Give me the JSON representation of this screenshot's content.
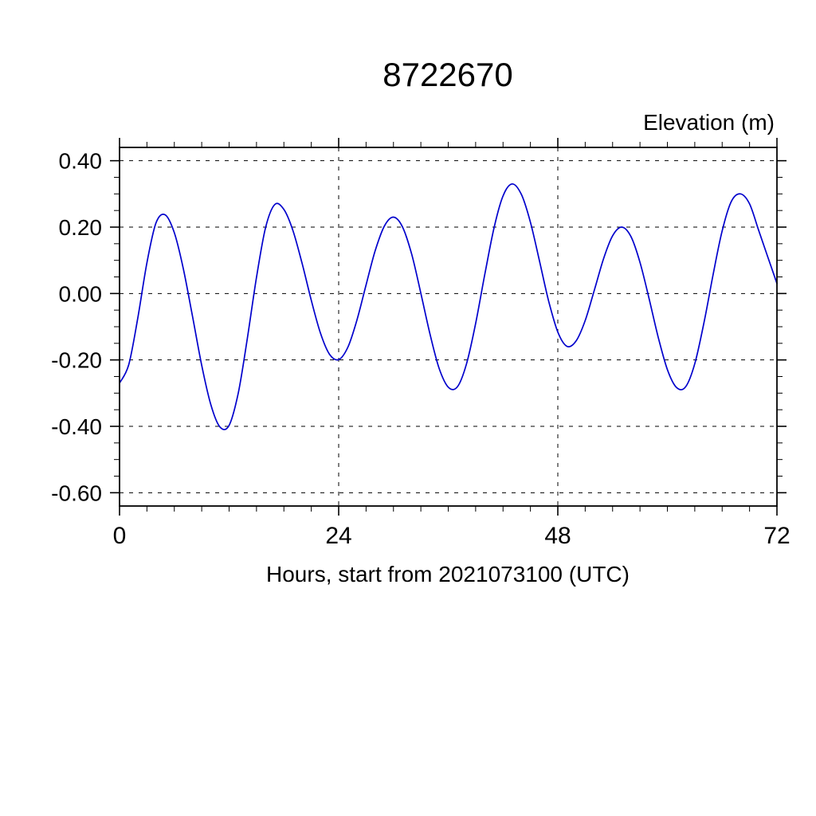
{
  "chart_data": {
    "type": "line",
    "title": "8722670",
    "ylabel": "Elevation (m)",
    "xlabel": "Hours, start from 2021073100 (UTC)",
    "xlim": [
      0,
      72
    ],
    "ylim": [
      -0.64,
      0.44
    ],
    "grid": true,
    "x_ticks": [
      0,
      24,
      48,
      72
    ],
    "x_tick_labels": [
      "0",
      "24",
      "48",
      "72"
    ],
    "x_grid": [
      24,
      48
    ],
    "x_minor_step": 3,
    "y_major": [
      0.4,
      0.2,
      0.0,
      -0.2,
      -0.4,
      -0.6
    ],
    "y_tick_labels": [
      "0.40",
      "0.20",
      "0.00",
      "-0.20",
      "-0.40",
      "-0.60"
    ],
    "y_minor_step": 0.05,
    "line_color": "#0000cc",
    "grid_color": "#000000",
    "legend": "none",
    "series": [
      {
        "name": "elevation",
        "x": [
          0,
          1,
          2,
          3,
          4,
          5,
          6,
          7,
          8,
          9,
          10,
          11,
          12,
          13,
          14,
          15,
          16,
          17,
          18,
          19,
          20,
          21,
          22,
          23,
          24,
          25,
          26,
          27,
          28,
          29,
          30,
          31,
          32,
          33,
          34,
          35,
          36,
          37,
          38,
          39,
          40,
          41,
          42,
          43,
          44,
          45,
          46,
          47,
          48,
          49,
          50,
          51,
          52,
          53,
          54,
          55,
          56,
          57,
          58,
          59,
          60,
          61,
          62,
          63,
          64,
          65,
          66,
          67,
          68,
          69,
          70,
          71,
          72
        ],
        "y": [
          -0.27,
          -0.215,
          -0.074,
          0.093,
          0.213,
          0.237,
          0.183,
          0.073,
          -0.07,
          -0.216,
          -0.335,
          -0.402,
          -0.397,
          -0.3,
          -0.135,
          0.049,
          0.199,
          0.268,
          0.253,
          0.189,
          0.09,
          -0.02,
          -0.119,
          -0.183,
          -0.199,
          -0.162,
          -0.08,
          0.026,
          0.129,
          0.203,
          0.23,
          0.2,
          0.118,
          0.001,
          -0.122,
          -0.225,
          -0.282,
          -0.281,
          -0.212,
          -0.09,
          0.057,
          0.196,
          0.294,
          0.33,
          0.299,
          0.215,
          0.097,
          -0.023,
          -0.116,
          -0.159,
          -0.143,
          -0.081,
          0.01,
          0.104,
          0.174,
          0.2,
          0.172,
          0.094,
          -0.016,
          -0.132,
          -0.229,
          -0.283,
          -0.281,
          -0.211,
          -0.089,
          0.056,
          0.189,
          0.277,
          0.3,
          0.27,
          0.19,
          0.11,
          0.03
        ]
      }
    ]
  }
}
